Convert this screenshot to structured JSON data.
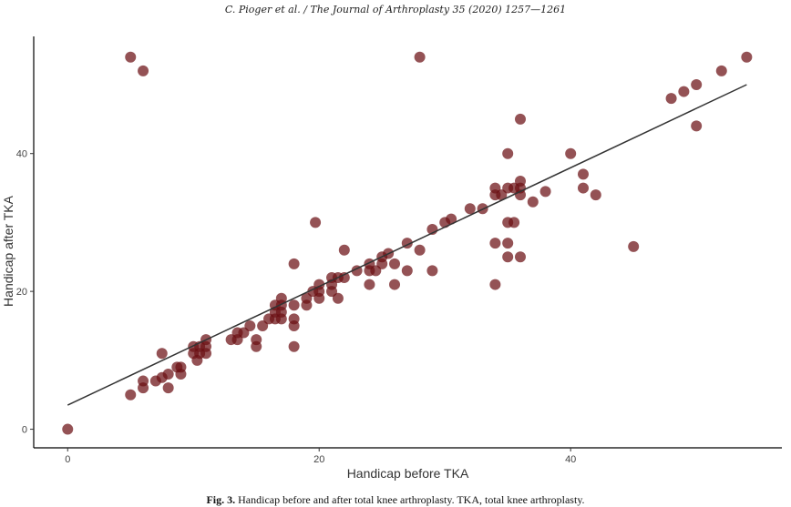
{
  "header": {
    "running_head": "C. Pioger et al. / The Journal of Arthroplasty 35 (2020) 1257—1261"
  },
  "caption": {
    "label": "Fig. 3.",
    "text": "Handicap before and after total knee arthroplasty. TKA, total knee arthroplasty."
  },
  "colors": {
    "point": "#6b0f14",
    "line": "#333333",
    "axis": "#000000"
  },
  "chart_data": {
    "type": "scatter",
    "title": "",
    "xlabel": "Handicap before TKA",
    "ylabel": "Handicap after TKA",
    "xlim": [
      -2.7,
      56.8
    ],
    "ylim": [
      -2.7,
      57
    ],
    "xticks": [
      0,
      20,
      40
    ],
    "yticks": [
      0,
      20,
      40
    ],
    "grid": false,
    "legend": "none",
    "regression_line": {
      "x": [
        0,
        54
      ],
      "y": [
        3.5,
        50
      ]
    },
    "points": [
      [
        0,
        0
      ],
      [
        5,
        5
      ],
      [
        5,
        54
      ],
      [
        6,
        52
      ],
      [
        6,
        6
      ],
      [
        6,
        7
      ],
      [
        7,
        7
      ],
      [
        7.5,
        7.5
      ],
      [
        7.5,
        11
      ],
      [
        8,
        6
      ],
      [
        8,
        8
      ],
      [
        8.7,
        9
      ],
      [
        9,
        8
      ],
      [
        9,
        9
      ],
      [
        10,
        11
      ],
      [
        10,
        12
      ],
      [
        10.3,
        10
      ],
      [
        10.5,
        11
      ],
      [
        10.5,
        12
      ],
      [
        11,
        11
      ],
      [
        11,
        12
      ],
      [
        11,
        13
      ],
      [
        13,
        13
      ],
      [
        13.5,
        13
      ],
      [
        13.5,
        14
      ],
      [
        14,
        14
      ],
      [
        14.5,
        15
      ],
      [
        15,
        12
      ],
      [
        15,
        13
      ],
      [
        15.5,
        15
      ],
      [
        16,
        16
      ],
      [
        16.5,
        16
      ],
      [
        16.5,
        17
      ],
      [
        16.5,
        18
      ],
      [
        17,
        16
      ],
      [
        17,
        17
      ],
      [
        17,
        18
      ],
      [
        17,
        19
      ],
      [
        18,
        12
      ],
      [
        18,
        15
      ],
      [
        18,
        16
      ],
      [
        18,
        18
      ],
      [
        18,
        24
      ],
      [
        19,
        18
      ],
      [
        19,
        19
      ],
      [
        19.5,
        20
      ],
      [
        20,
        19
      ],
      [
        20,
        20
      ],
      [
        20,
        21
      ],
      [
        19.7,
        30
      ],
      [
        21,
        20
      ],
      [
        21,
        21
      ],
      [
        21,
        22
      ],
      [
        21.5,
        19
      ],
      [
        21.5,
        22
      ],
      [
        22,
        22
      ],
      [
        22,
        26
      ],
      [
        23,
        23
      ],
      [
        24,
        21
      ],
      [
        24,
        23
      ],
      [
        24,
        24
      ],
      [
        24.5,
        23
      ],
      [
        25,
        24
      ],
      [
        25,
        25
      ],
      [
        25.5,
        25.5
      ],
      [
        26,
        21
      ],
      [
        26,
        24
      ],
      [
        27,
        23
      ],
      [
        27,
        27
      ],
      [
        28,
        26
      ],
      [
        28,
        54
      ],
      [
        29,
        23
      ],
      [
        29,
        29
      ],
      [
        30,
        30
      ],
      [
        30.5,
        30.5
      ],
      [
        32,
        32
      ],
      [
        33,
        32
      ],
      [
        34,
        21
      ],
      [
        34,
        27
      ],
      [
        34,
        34
      ],
      [
        34,
        35
      ],
      [
        34.5,
        34
      ],
      [
        35,
        25
      ],
      [
        35,
        27
      ],
      [
        35,
        30
      ],
      [
        35,
        35
      ],
      [
        35,
        40
      ],
      [
        35.5,
        30
      ],
      [
        35.5,
        35
      ],
      [
        36,
        25
      ],
      [
        36,
        34
      ],
      [
        36,
        35
      ],
      [
        36,
        36
      ],
      [
        36,
        45
      ],
      [
        37,
        33
      ],
      [
        38,
        34.5
      ],
      [
        40,
        40
      ],
      [
        41,
        35
      ],
      [
        41,
        37
      ],
      [
        42,
        34
      ],
      [
        45,
        26.5
      ],
      [
        48,
        48
      ],
      [
        49,
        49
      ],
      [
        50,
        44
      ],
      [
        50,
        50
      ],
      [
        52,
        52
      ],
      [
        54,
        54
      ]
    ]
  }
}
